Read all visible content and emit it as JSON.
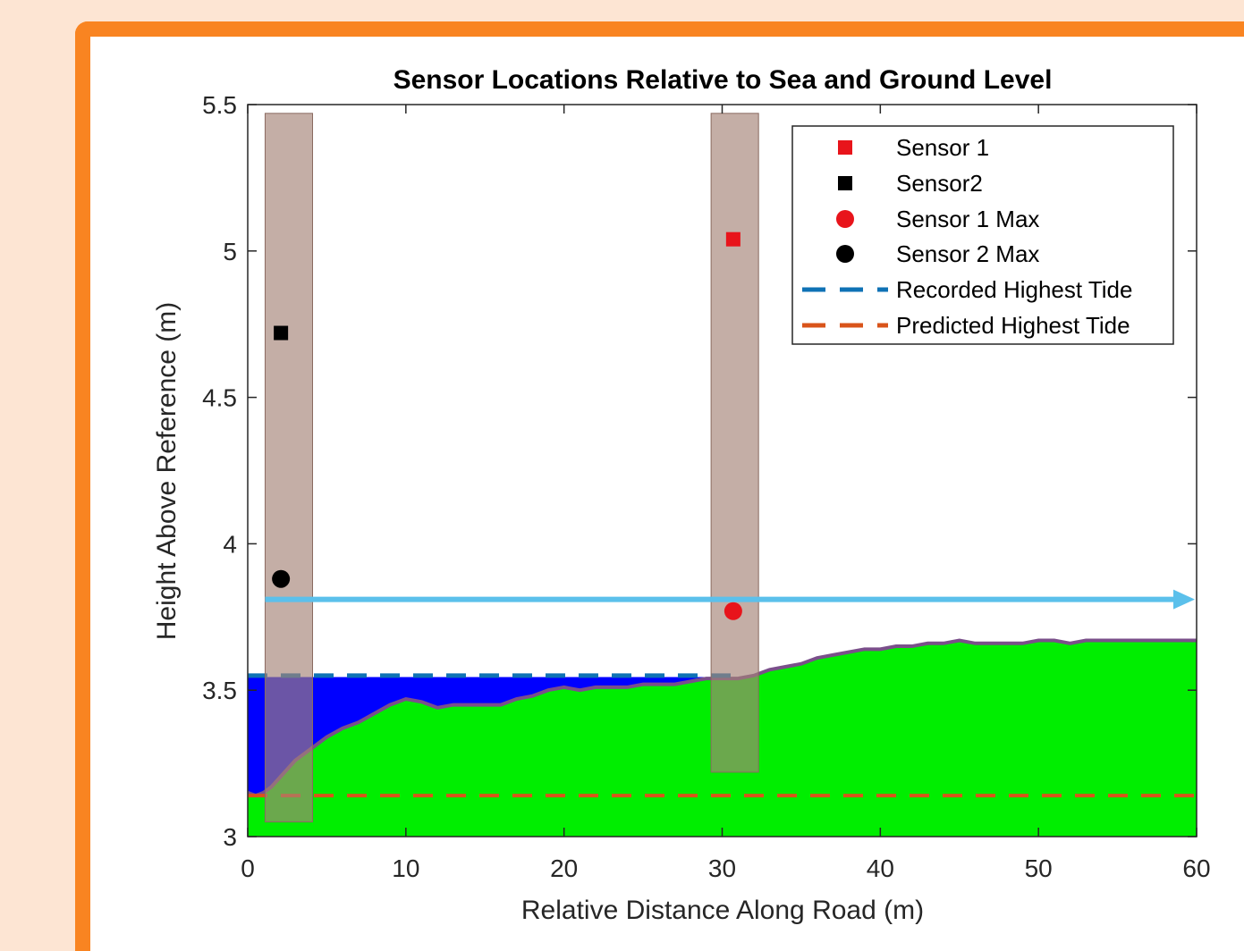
{
  "chart_data": {
    "type": "area",
    "title": "Sensor Locations Relative to Sea and Ground Level",
    "xlabel": "Relative Distance Along Road (m)",
    "ylabel": "Height Above Reference (m)",
    "xlim": [
      0,
      60
    ],
    "ylim": [
      3,
      5.5
    ],
    "xticks": [
      0,
      10,
      20,
      30,
      40,
      50,
      60
    ],
    "yticks": [
      3,
      3.5,
      4,
      4.5,
      5,
      5.5
    ],
    "xtick_labels": [
      "0",
      "10",
      "20",
      "30",
      "40",
      "50",
      "60"
    ],
    "ytick_labels": [
      "3",
      "3.5",
      "4",
      "4.5",
      "5",
      "5.5"
    ],
    "grid": false,
    "legend_position": "top-right",
    "legend": [
      {
        "label": "Sensor 1",
        "marker": "square",
        "color": "#e8141b"
      },
      {
        "label": "Sensor2",
        "marker": "square",
        "color": "#000000"
      },
      {
        "label": "Sensor 1 Max",
        "marker": "circle",
        "color": "#e8141b"
      },
      {
        "label": "Sensor 2 Max",
        "marker": "circle",
        "color": "#000000"
      },
      {
        "label": "Recorded Highest Tide",
        "marker": "dashed-line",
        "color": "#0f72b5"
      },
      {
        "label": "Predicted Highest Tide",
        "marker": "dashed-line",
        "color": "#d9541a"
      }
    ],
    "ground_profile": {
      "name": "Ground Level",
      "color": "#00ee00",
      "edge_color": "#7a4f8a",
      "x": [
        0,
        0.5,
        1,
        1.5,
        2,
        3,
        4,
        5,
        6,
        7,
        8,
        9,
        10,
        11,
        12,
        13,
        14,
        15,
        16,
        17,
        18,
        19,
        20,
        21,
        22,
        23,
        24,
        25,
        26,
        27,
        28,
        29,
        30,
        31,
        32,
        33,
        34,
        35,
        36,
        37,
        38,
        39,
        40,
        41,
        42,
        43,
        44,
        45,
        46,
        47,
        48,
        49,
        50,
        51,
        52,
        53,
        54,
        55,
        56,
        57,
        58,
        59,
        60
      ],
      "y": [
        3.15,
        3.14,
        3.15,
        3.17,
        3.2,
        3.26,
        3.3,
        3.34,
        3.37,
        3.39,
        3.42,
        3.45,
        3.47,
        3.46,
        3.44,
        3.45,
        3.45,
        3.45,
        3.45,
        3.47,
        3.48,
        3.5,
        3.51,
        3.5,
        3.51,
        3.51,
        3.51,
        3.52,
        3.52,
        3.52,
        3.53,
        3.54,
        3.54,
        3.54,
        3.55,
        3.57,
        3.58,
        3.59,
        3.61,
        3.62,
        3.63,
        3.64,
        3.64,
        3.65,
        3.65,
        3.66,
        3.66,
        3.67,
        3.66,
        3.66,
        3.66,
        3.66,
        3.67,
        3.67,
        3.66,
        3.67,
        3.67,
        3.67,
        3.67,
        3.67,
        3.67,
        3.67,
        3.67
      ]
    },
    "water": {
      "name": "Sea",
      "color": "#0000ff",
      "level": 3.545,
      "x_range": [
        0,
        30
      ]
    },
    "series": [
      {
        "name": "Sensor 1",
        "type": "scatter",
        "marker": "square",
        "color": "#e8141b",
        "x": [
          30.7
        ],
        "y": [
          5.04
        ]
      },
      {
        "name": "Sensor2",
        "type": "scatter",
        "marker": "square",
        "color": "#000000",
        "x": [
          2.1
        ],
        "y": [
          4.72
        ]
      },
      {
        "name": "Sensor 1 Max",
        "type": "scatter",
        "marker": "circle",
        "color": "#e8141b",
        "x": [
          30.7
        ],
        "y": [
          3.77
        ]
      },
      {
        "name": "Sensor 2 Max",
        "type": "scatter",
        "marker": "circle",
        "color": "#000000",
        "x": [
          2.1
        ],
        "y": [
          3.88
        ]
      },
      {
        "name": "Recorded Highest Tide",
        "type": "line",
        "style": "dashed",
        "color": "#0f72b5",
        "x": [
          0,
          30.7
        ],
        "y": [
          3.55,
          3.55
        ]
      },
      {
        "name": "Predicted Highest Tide",
        "type": "line",
        "style": "dashed",
        "color": "#d9541a",
        "x": [
          0,
          60
        ],
        "y": [
          3.14,
          3.14
        ]
      }
    ],
    "sensor_bars": [
      {
        "x": [
          1.1,
          4.1
        ],
        "y": [
          3.05,
          5.47
        ],
        "color": "#a48277"
      },
      {
        "x": [
          29.3,
          32.3
        ],
        "y": [
          3.22,
          5.47
        ],
        "color": "#a48277"
      }
    ],
    "annotation_arrow": {
      "color": "#5bc0eb",
      "x": [
        1.1,
        60
      ],
      "y": [
        3.81,
        3.81
      ]
    }
  }
}
